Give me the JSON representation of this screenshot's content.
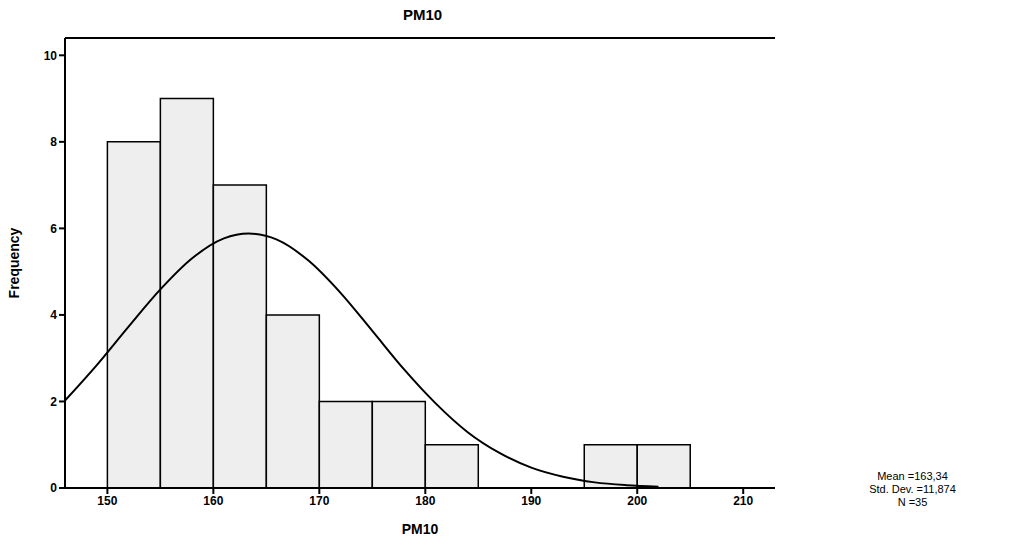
{
  "chart_data": {
    "type": "histogram",
    "title": "PM10",
    "x_label": "PM10",
    "y_label": "Frequency",
    "bins": [
      150,
      155,
      160,
      165,
      170,
      175,
      180,
      185,
      190,
      195,
      200,
      205
    ],
    "counts": [
      8,
      9,
      7,
      4,
      2,
      2,
      1,
      0,
      0,
      1,
      1
    ],
    "color": "#eeeeee",
    "curve": {
      "type": "line",
      "x": [
        146,
        149,
        152,
        155,
        158,
        161,
        163.34,
        166,
        169,
        172,
        175,
        178,
        181,
        184,
        187,
        190,
        193,
        196,
        199,
        202
      ],
      "values": [
        2.02,
        2.84,
        3.73,
        4.59,
        5.31,
        5.77,
        5.88,
        5.74,
        5.25,
        4.51,
        3.63,
        2.74,
        1.95,
        1.29,
        0.81,
        0.47,
        0.26,
        0.13,
        0.065,
        0.03
      ],
      "color": "#000000"
    },
    "xlim": [
      146,
      213
    ],
    "xticks": [
      150,
      160,
      170,
      180,
      190,
      200,
      210
    ],
    "ylim": [
      0,
      10.4
    ],
    "yticks": [
      0,
      2,
      4,
      6,
      8,
      10
    ],
    "annotations": [
      "Mean =163,34",
      "Std. Dev. =11,874",
      "N =35"
    ]
  }
}
